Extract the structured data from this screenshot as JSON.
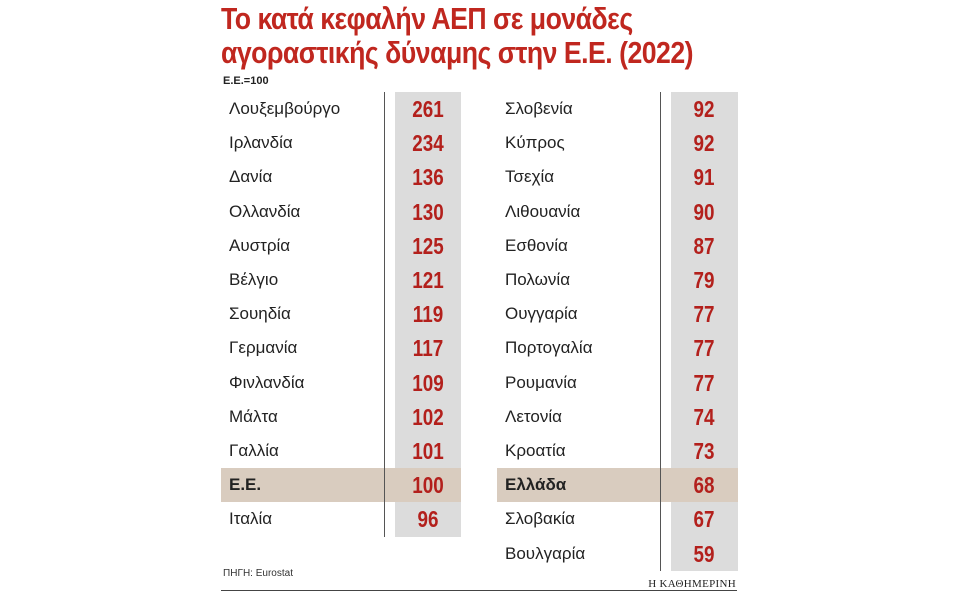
{
  "chart_data": {
    "type": "table",
    "title_line1": "Το κατά κεφαλήν ΑΕΠ σε μονάδες",
    "title_line2": "αγοραστικής δύναμης στην Ε.Ε. (2022)",
    "subtitle": "Ε.Ε.=100",
    "left": [
      {
        "country": "Λουξεμβούργο",
        "value": 261
      },
      {
        "country": "Ιρλανδία",
        "value": 234
      },
      {
        "country": "Δανία",
        "value": 136
      },
      {
        "country": "Ολλανδία",
        "value": 130
      },
      {
        "country": "Αυστρία",
        "value": 125
      },
      {
        "country": "Βέλγιο",
        "value": 121
      },
      {
        "country": "Σουηδία",
        "value": 119
      },
      {
        "country": "Γερμανία",
        "value": 117
      },
      {
        "country": "Φινλανδία",
        "value": 109
      },
      {
        "country": "Μάλτα",
        "value": 102
      },
      {
        "country": "Γαλλία",
        "value": 101
      },
      {
        "country": "Ε.Ε.",
        "value": 100,
        "highlight": true
      },
      {
        "country": "Ιταλία",
        "value": 96
      }
    ],
    "right": [
      {
        "country": "Σλοβενία",
        "value": 92
      },
      {
        "country": "Κύπρος",
        "value": 92
      },
      {
        "country": "Τσεχία",
        "value": 91
      },
      {
        "country": "Λιθουανία",
        "value": 90
      },
      {
        "country": "Εσθονία",
        "value": 87
      },
      {
        "country": "Πολωνία",
        "value": 79
      },
      {
        "country": "Ουγγαρία",
        "value": 77
      },
      {
        "country": "Πορτογαλία",
        "value": 77
      },
      {
        "country": "Ρουμανία",
        "value": 77
      },
      {
        "country": "Λετονία",
        "value": 74
      },
      {
        "country": "Κροατία",
        "value": 73
      },
      {
        "country": "Ελλάδα",
        "value": 68,
        "highlight": true
      },
      {
        "country": "Σλοβακία",
        "value": 67
      },
      {
        "country": "Βουλγαρία",
        "value": 59
      }
    ],
    "source": "ΠΗΓΗ: Eurostat",
    "brand": "Η ΚΑΘΗΜΕΡΙΝΗ",
    "colors": {
      "title": "#c0271f",
      "value": "#b3201c",
      "highlight": "#d9ccbf",
      "value_bg": "#dcdcdc"
    }
  }
}
